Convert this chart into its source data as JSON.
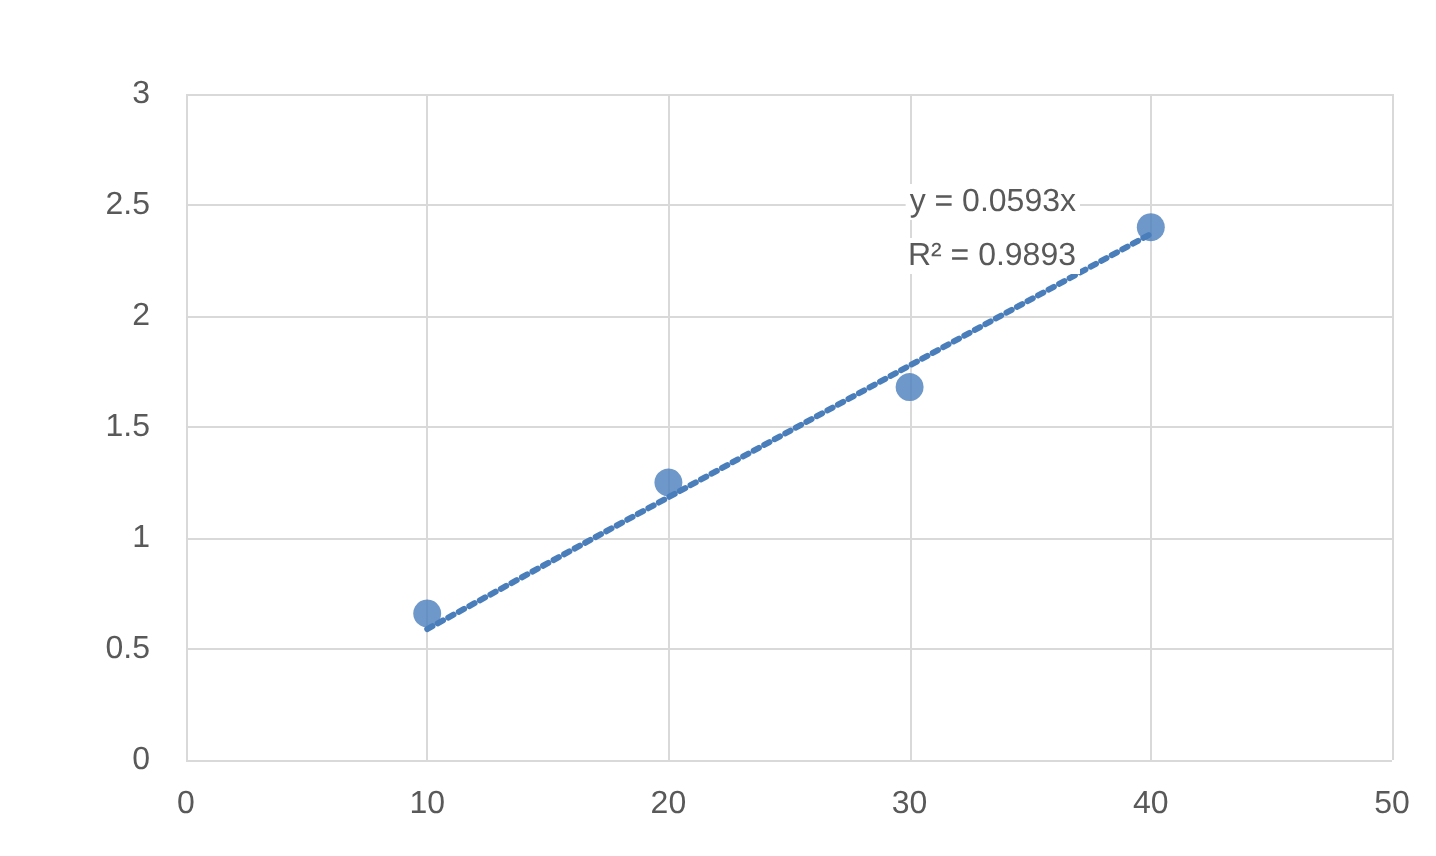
{
  "chart_data": {
    "type": "scatter",
    "series": [
      {
        "color": "#4a7ebb",
        "x": [
          10,
          20,
          30,
          40
        ],
        "values": [
          0.66,
          1.25,
          1.68,
          2.4
        ],
        "marker": "circle"
      },
      {
        "type": "line",
        "color": "#4a7ebb",
        "x": [
          10,
          40
        ],
        "values": [
          0.59,
          2.37
        ],
        "line_style": "dotted",
        "marker": "none"
      }
    ],
    "annotations": [
      "y = 0.0593x",
      "R² = 0.9893"
    ],
    "xlim": [
      0,
      50
    ],
    "xticks": [
      0,
      10,
      20,
      30,
      40,
      50
    ],
    "ylim": [
      0,
      3
    ],
    "yticks": [
      0,
      0.5,
      1,
      1.5,
      2,
      2.5,
      3
    ],
    "grid": true
  }
}
